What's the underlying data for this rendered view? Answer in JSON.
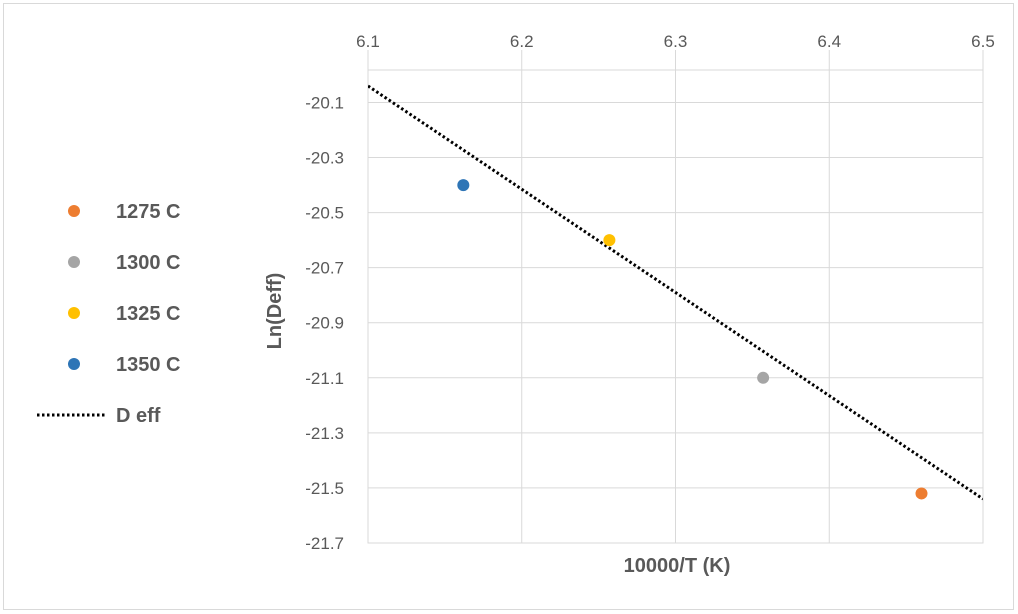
{
  "chart_data": {
    "type": "scatter",
    "title": "",
    "xlabel": "10000/T (K)",
    "ylabel": "Ln(Deff)",
    "xlim": [
      6.1,
      6.5
    ],
    "ylim": [
      -21.7,
      -19.982
    ],
    "x_axis_position": "top",
    "x_ticks": [
      "6.1",
      "6.2",
      "6.3",
      "6.4",
      "6.5"
    ],
    "y_ticks": [
      "-20.1",
      "-20.3",
      "-20.5",
      "-20.7",
      "-20.9",
      "-21.1",
      "-21.3",
      "-21.5",
      "-21.7"
    ],
    "grid": true,
    "legend_position": "left",
    "series": [
      {
        "name": "1275 C",
        "x": [
          6.46
        ],
        "y": [
          -21.52
        ],
        "color": "#ED7D31",
        "kind": "marker"
      },
      {
        "name": "1300 C",
        "x": [
          6.357
        ],
        "y": [
          -21.1
        ],
        "color": "#A5A5A5",
        "kind": "marker"
      },
      {
        "name": "1325 C",
        "x": [
          6.257
        ],
        "y": [
          -20.6
        ],
        "color": "#FFC000",
        "kind": "marker"
      },
      {
        "name": "1350 C",
        "x": [
          6.162
        ],
        "y": [
          -20.4
        ],
        "color": "#2E75B6",
        "kind": "marker"
      },
      {
        "name": "D eff",
        "x": [
          6.1,
          6.5
        ],
        "y": [
          -20.04,
          -21.54
        ],
        "color": "#000000",
        "kind": "dotted-line"
      }
    ]
  }
}
